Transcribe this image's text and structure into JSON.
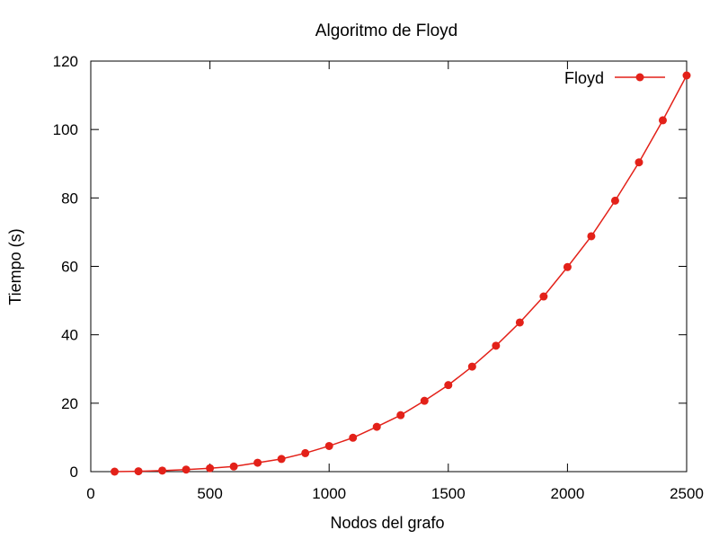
{
  "chart_data": {
    "type": "line",
    "title": "Algoritmo de Floyd",
    "xlabel": "Nodos del grafo",
    "ylabel": "Tiempo (s)",
    "xlim": [
      0,
      2500
    ],
    "ylim": [
      0,
      120
    ],
    "xticks": [
      0,
      500,
      1000,
      1500,
      2000,
      2500
    ],
    "yticks": [
      0,
      20,
      40,
      60,
      80,
      100,
      120
    ],
    "grid": false,
    "legend_position": "top-right",
    "series": [
      {
        "name": "Floyd",
        "color": "#e32119",
        "marker": "circle",
        "x": [
          100,
          200,
          300,
          400,
          500,
          600,
          700,
          800,
          900,
          1000,
          1100,
          1200,
          1300,
          1400,
          1500,
          1600,
          1700,
          1800,
          1900,
          2000,
          2100,
          2200,
          2300,
          2400,
          2500
        ],
        "y": [
          0.0,
          0.1,
          0.3,
          0.6,
          1.0,
          1.5,
          2.6,
          3.7,
          5.4,
          7.5,
          9.9,
          13.1,
          16.5,
          20.7,
          25.3,
          30.7,
          36.8,
          43.6,
          51.2,
          59.8,
          68.8,
          79.2,
          90.4,
          102.7,
          115.8
        ]
      }
    ]
  }
}
